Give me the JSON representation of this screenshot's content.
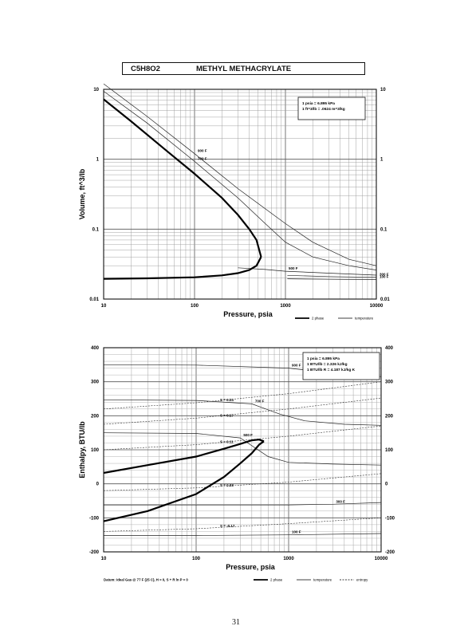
{
  "header": {
    "formula": "C5H8O2",
    "name": "METHYL METHACRYLATE"
  },
  "page_number": "31",
  "chart_data": [
    {
      "type": "line",
      "ylabel": "Volume, ft^3/lb",
      "xlabel": "Pressure,  psia",
      "xscale": "log",
      "yscale": "log",
      "xlim": [
        10,
        10000
      ],
      "ylim": [
        0.01,
        10
      ],
      "xticks": [
        "10",
        "100",
        "1000",
        "10000"
      ],
      "yticks": [
        "0.01",
        "0.1",
        "1",
        "10"
      ],
      "yticks_right": [
        "0.01",
        "0.1",
        "1",
        "10"
      ],
      "grid": true,
      "notes": [
        "1 psia  =  6.895 kPa",
        "1 ft^3/lb  =  .0624 m^3/kg"
      ],
      "legend": [
        {
          "label": "2 phase",
          "style": "heavy"
        },
        {
          "label": "temperature",
          "style": "thin"
        }
      ],
      "legend_placement": "bottom-right",
      "saturation_dome": {
        "liquid": [
          [
            10,
            0.0195
          ],
          [
            30,
            0.0198
          ],
          [
            100,
            0.0205
          ],
          [
            200,
            0.0218
          ],
          [
            300,
            0.0235
          ],
          [
            400,
            0.026
          ],
          [
            480,
            0.03
          ],
          [
            540,
            0.04
          ]
        ],
        "vapor": [
          [
            10,
            7.2
          ],
          [
            20,
            3.5
          ],
          [
            50,
            1.3
          ],
          [
            100,
            0.62
          ],
          [
            200,
            0.28
          ],
          [
            300,
            0.16
          ],
          [
            400,
            0.1
          ],
          [
            480,
            0.07
          ],
          [
            540,
            0.04
          ]
        ]
      },
      "series": [
        {
          "name": "100 F",
          "points": [
            [
              1050,
              0.0195
            ],
            [
              3000,
              0.0192
            ],
            [
              10000,
              0.019
            ]
          ]
        },
        {
          "name": "300 F",
          "points": [
            [
              1050,
              0.0218
            ],
            [
              3000,
              0.021
            ],
            [
              10000,
              0.0205
            ]
          ]
        },
        {
          "name": "500 F",
          "points": [
            [
              300,
              0.028
            ],
            [
              600,
              0.0265
            ],
            [
              1000,
              0.025
            ],
            [
              3000,
              0.0235
            ],
            [
              10000,
              0.022
            ]
          ]
        },
        {
          "name": "700 F",
          "points": [
            [
              10,
              9.4
            ],
            [
              30,
              3.3
            ],
            [
              100,
              0.93
            ],
            [
              300,
              0.28
            ],
            [
              600,
              0.12
            ],
            [
              1000,
              0.065
            ],
            [
              2000,
              0.04
            ],
            [
              5000,
              0.03
            ],
            [
              10000,
              0.026
            ]
          ]
        },
        {
          "name": "900 F",
          "points": [
            [
              10,
              12
            ],
            [
              30,
              4.1
            ],
            [
              100,
              1.2
            ],
            [
              300,
              0.38
            ],
            [
              1000,
              0.12
            ],
            [
              2000,
              0.065
            ],
            [
              5000,
              0.037
            ],
            [
              10000,
              0.03
            ]
          ]
        }
      ]
    },
    {
      "type": "line",
      "ylabel": "Enthalpy, BTU/lb",
      "xlabel": "Pressure,  psia",
      "xscale": "log",
      "yscale": "linear",
      "xlim": [
        10,
        10000
      ],
      "ylim": [
        -200,
        400
      ],
      "xticks": [
        "10",
        "100",
        "1000",
        "10000"
      ],
      "yticks": [
        "-200",
        "-100",
        "0",
        "100",
        "200",
        "300",
        "400"
      ],
      "yticks_right": [
        "-200",
        "-100",
        "0",
        "100",
        "200",
        "300",
        "400"
      ],
      "grid": true,
      "notes": [
        "1 psia  =  6.895 kPa",
        "1 BTU/lb  =  2.326 kJ/kg",
        "1 BTU/lb R  =  4.187 kJ/kg K"
      ],
      "footnote": "Datum: Ideal Gas @ 77 F (25 C),  H = 0,  S + R ln P = 0",
      "legend": [
        {
          "label": "2 phase",
          "style": "heavy"
        },
        {
          "label": "temperature",
          "style": "thin"
        },
        {
          "label": "entropy",
          "style": "dashed"
        }
      ],
      "legend_placement": "bottom-right",
      "saturation_dome": {
        "liquid": [
          [
            10,
            -110
          ],
          [
            30,
            -80
          ],
          [
            100,
            -30
          ],
          [
            200,
            20
          ],
          [
            300,
            60
          ],
          [
            400,
            90
          ],
          [
            480,
            115
          ],
          [
            540,
            125
          ]
        ],
        "vapor": [
          [
            10,
            32
          ],
          [
            30,
            55
          ],
          [
            100,
            80
          ],
          [
            200,
            103
          ],
          [
            300,
            117
          ],
          [
            400,
            128
          ],
          [
            480,
            130
          ],
          [
            540,
            125
          ]
        ]
      },
      "series": [
        {
          "name": "100 F",
          "points": [
            [
              10,
              -152
            ],
            [
              100,
              -152
            ],
            [
              1000,
              -150
            ],
            [
              10000,
              -146
            ]
          ]
        },
        {
          "name": "300 F",
          "points": [
            [
              10,
              -62
            ],
            [
              1000,
              -62
            ],
            [
              3000,
              -60
            ],
            [
              10000,
              -55
            ]
          ]
        },
        {
          "name": "500 F",
          "points": [
            [
              10,
              150
            ],
            [
              100,
              148
            ],
            [
              300,
              135
            ],
            [
              600,
              80
            ],
            [
              1000,
              63
            ],
            [
              3000,
              58
            ],
            [
              10000,
              55
            ]
          ]
        },
        {
          "name": "700 F",
          "points": [
            [
              10,
              247
            ],
            [
              100,
              245
            ],
            [
              400,
              235
            ],
            [
              800,
              205
            ],
            [
              1500,
              185
            ],
            [
              4000,
              175
            ],
            [
              10000,
              172
            ]
          ]
        },
        {
          "name": "900 F",
          "points": [
            [
              10,
              350
            ],
            [
              100,
              349
            ],
            [
              1000,
              340
            ],
            [
              3000,
              325
            ],
            [
              10000,
              315
            ]
          ]
        }
      ],
      "entropy_lines": [
        {
          "name": "S = 0.24",
          "points": [
            [
              10,
              220
            ],
            [
              100,
              238
            ],
            [
              1000,
              265
            ],
            [
              10000,
              300
            ]
          ]
        },
        {
          "name": "S = 0.17",
          "points": [
            [
              10,
              175
            ],
            [
              100,
              193
            ],
            [
              1000,
              220
            ],
            [
              10000,
              252
            ]
          ]
        },
        {
          "name": "S = 0.11",
          "points": [
            [
              10,
              100
            ],
            [
              100,
              115
            ],
            [
              1000,
              140
            ],
            [
              10000,
              170
            ]
          ]
        },
        {
          "name": "S = 0.03",
          "points": [
            [
              10,
              -20
            ],
            [
              100,
              -12
            ],
            [
              1000,
              5
            ],
            [
              10000,
              30
            ]
          ]
        },
        {
          "name": "S = -0.17",
          "points": [
            [
              10,
              -140
            ],
            [
              100,
              -132
            ],
            [
              1000,
              -117
            ],
            [
              10000,
              -100
            ]
          ]
        }
      ]
    }
  ]
}
